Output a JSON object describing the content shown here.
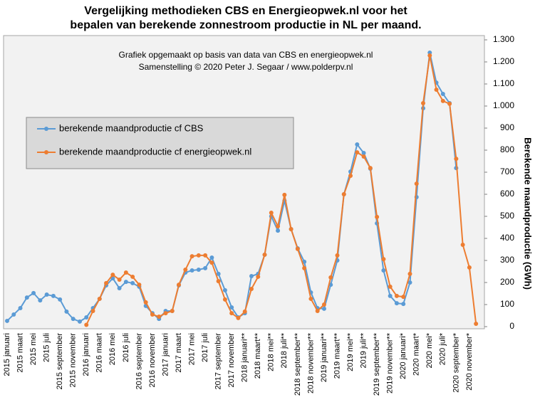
{
  "chart_data": {
    "type": "line",
    "title": [
      "Vergelijking  methodieken  CBS en Energieopwek.nl  voor het",
      "bepalen van berekende zonnestroom productie in NL per maand."
    ],
    "annotations": [
      "Grafiek  opgemaakt  op basis  van data van CBS  en  energieopwek.nl",
      "Samenstelling  © 2020  Peter J. Segaar / www.polderpv.nl"
    ],
    "y_label": "Berekende  maandproductie  (GWh)",
    "categories": [
      "2015 januari",
      null,
      "2015 maart",
      null,
      "2015 mei",
      null,
      "2015 juli",
      null,
      "2015 september",
      null,
      "2015 november",
      null,
      "2016 januari",
      null,
      "2016 maart",
      null,
      "2016 mei",
      null,
      "2016 juli",
      null,
      "2016 september",
      null,
      "2016 november",
      null,
      "2017 januari",
      null,
      "2017 maart",
      null,
      "2017 mei",
      null,
      "2017 juli",
      null,
      "2017 september",
      null,
      "2017 november",
      null,
      "2018 januari**",
      null,
      "2018 maart**",
      null,
      "2018 mei**",
      null,
      "2018 juli**",
      null,
      "2018 september**",
      null,
      "2018 november**",
      null,
      "2019 januari**",
      null,
      "2019 maart**",
      null,
      "2019 mei**",
      null,
      "2019 juli**",
      null,
      "2019 september**",
      null,
      "2019 november**",
      null,
      "2020 januari*",
      null,
      "2020 maart*",
      null,
      "2020 mei*",
      null,
      "2020 juli*",
      null,
      "2020 september*",
      null,
      "2020 november*",
      null
    ],
    "series": [
      {
        "name": "berekende maandproductie cf CBS",
        "color": "#5b9bd5",
        "values": [
          26,
          55,
          84,
          132,
          152,
          119,
          145,
          139,
          123,
          68,
          35,
          23,
          42,
          84,
          126,
          187,
          219,
          174,
          203,
          197,
          181,
          94,
          61,
          35,
          71,
          71,
          187,
          245,
          255,
          258,
          265,
          313,
          239,
          165,
          87,
          42,
          61,
          229,
          239,
          326,
          500,
          435,
          571,
          442,
          355,
          294,
          155,
          84,
          81,
          190,
          300,
          600,
          703,
          826,
          787,
          716,
          468,
          255,
          139,
          106,
          103,
          200,
          587,
          990,
          1242,
          1106,
          1055,
          1013,
          719,
          null,
          null,
          null
        ]
      },
      {
        "name": "berekende maandproductie cf energieopwek.nl",
        "color": "#ed7d31",
        "values": [
          null,
          null,
          null,
          null,
          null,
          null,
          null,
          null,
          null,
          null,
          null,
          null,
          8,
          71,
          126,
          197,
          235,
          213,
          245,
          226,
          190,
          110,
          55,
          45,
          61,
          71,
          190,
          258,
          319,
          323,
          323,
          290,
          206,
          123,
          61,
          39,
          68,
          171,
          226,
          326,
          516,
          455,
          597,
          442,
          352,
          265,
          126,
          71,
          100,
          223,
          323,
          600,
          684,
          790,
          771,
          719,
          497,
          306,
          181,
          139,
          135,
          239,
          648,
          1013,
          1229,
          1074,
          1023,
          1010,
          761,
          371,
          268,
          13
        ]
      }
    ],
    "ylim": [
      0,
      1300
    ],
    "yticks": [
      0,
      100,
      200,
      300,
      400,
      500,
      600,
      700,
      800,
      900,
      {
        "value": 1000,
        "label": "1.000"
      },
      {
        "value": 1100,
        "label": "1.100"
      },
      {
        "value": 1200,
        "label": "1.200"
      },
      {
        "value": 1300,
        "label": "1.300"
      }
    ],
    "y_axis_side": "right",
    "grid": false,
    "legend_position": "upper left"
  }
}
